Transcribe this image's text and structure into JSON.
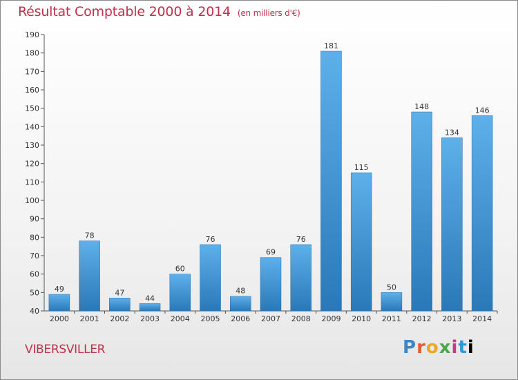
{
  "page": {
    "title": "Résultat Comptable 2000 à 2014",
    "subtitle": "(en milliers d'€)",
    "commune": "VIBERSVILLER",
    "logo_letters": [
      "P",
      "r",
      "o",
      "x",
      "i",
      "t",
      "i"
    ]
  },
  "chart_data": {
    "type": "bar",
    "title": "Résultat Comptable 2000 à 2014",
    "subtitle": "(en milliers d'€)",
    "xlabel": "",
    "ylabel": "",
    "categories": [
      "2000",
      "2001",
      "2002",
      "2003",
      "2004",
      "2005",
      "2006",
      "2007",
      "2008",
      "2009",
      "2010",
      "2011",
      "2012",
      "2013",
      "2014"
    ],
    "values": [
      49,
      78,
      47,
      44,
      60,
      76,
      48,
      69,
      76,
      181,
      115,
      50,
      148,
      134,
      146
    ],
    "ylim": [
      40,
      190
    ],
    "yticks": [
      40,
      50,
      60,
      70,
      80,
      90,
      100,
      110,
      120,
      130,
      140,
      150,
      160,
      170,
      180,
      190
    ],
    "grid": false,
    "colors": {
      "bar_light": "#5db0ea",
      "bar_dark": "#2a78b8",
      "axis": "#555555"
    }
  }
}
